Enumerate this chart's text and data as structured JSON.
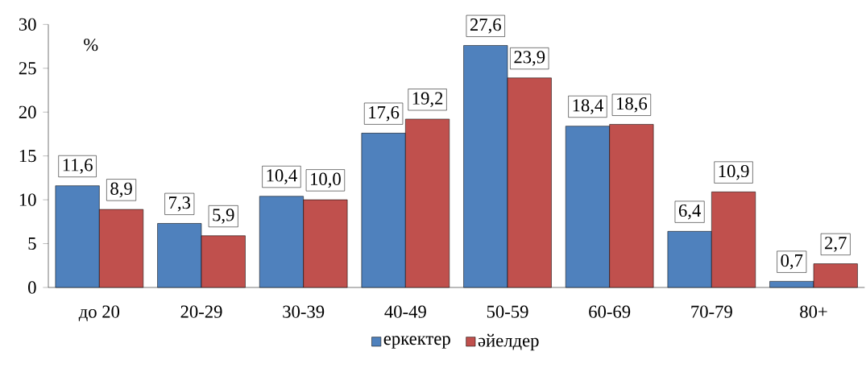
{
  "chart_data": {
    "type": "bar",
    "ylabel": "%",
    "categories": [
      "до 20",
      "20-29",
      "30-39",
      "40-49",
      "50-59",
      "60-69",
      "70-79",
      "80+"
    ],
    "series": [
      {
        "name": "еркектер",
        "color": "#4f81bd",
        "values": [
          11.6,
          7.3,
          10.4,
          17.6,
          27.6,
          18.4,
          6.4,
          0.7
        ],
        "value_labels": [
          "11,6",
          "7,3",
          "10,4",
          "17,6",
          "27,6",
          "18,4",
          "6,4",
          "0,7"
        ]
      },
      {
        "name": "әйелдер",
        "color": "#c0504d",
        "values": [
          8.9,
          5.9,
          10.0,
          19.2,
          23.9,
          18.6,
          10.9,
          2.7
        ],
        "value_labels": [
          "8,9",
          "5,9",
          "10,0",
          "19,2",
          "23,9",
          "18,6",
          "10,9",
          "2,7"
        ]
      }
    ],
    "ylim": [
      0,
      30
    ],
    "yticks": [
      0,
      5,
      10,
      15,
      20,
      25,
      30
    ],
    "grid": false,
    "legend": "bottom"
  }
}
